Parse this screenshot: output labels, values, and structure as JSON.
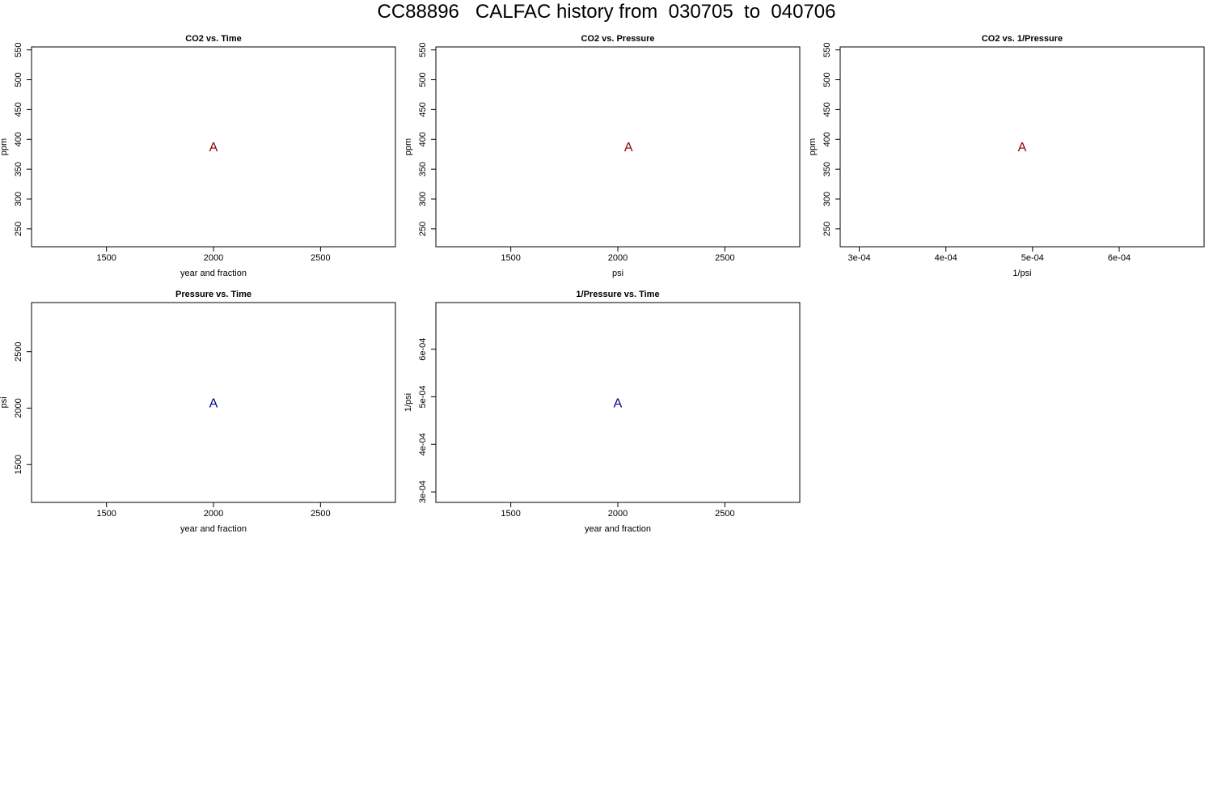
{
  "page_title": "CC88896   CALFAC history from  030705  to  040706",
  "chart_data": [
    {
      "type": "scatter",
      "title": "CO2 vs. Time",
      "xlabel": "year and fraction",
      "ylabel": "ppm",
      "xlim": [
        1150,
        2850
      ],
      "ylim": [
        220,
        555
      ],
      "xticks": [
        "1500",
        "2000",
        "2500"
      ],
      "xtick_values": [
        1500,
        2000,
        2500
      ],
      "yticks": [
        "250",
        "300",
        "350",
        "400",
        "450",
        "500",
        "550"
      ],
      "ytick_values": [
        250,
        300,
        350,
        400,
        450,
        500,
        550
      ],
      "series": [
        {
          "marker": "A",
          "color": "#8b0000",
          "points": [
            {
              "x": 2000,
              "y": 388
            }
          ]
        }
      ]
    },
    {
      "type": "scatter",
      "title": "CO2 vs. Pressure",
      "xlabel": "psi",
      "ylabel": "ppm",
      "xlim": [
        1150,
        2850
      ],
      "ylim": [
        220,
        555
      ],
      "xticks": [
        "1500",
        "2000",
        "2500"
      ],
      "xtick_values": [
        1500,
        2000,
        2500
      ],
      "yticks": [
        "250",
        "300",
        "350",
        "400",
        "450",
        "500",
        "550"
      ],
      "ytick_values": [
        250,
        300,
        350,
        400,
        450,
        500,
        550
      ],
      "series": [
        {
          "marker": "A",
          "color": "#8b0000",
          "points": [
            {
              "x": 2050,
              "y": 388
            }
          ]
        }
      ]
    },
    {
      "type": "scatter",
      "title": "CO2 vs. 1/Pressure",
      "xlabel": "1/psi",
      "ylabel": "ppm",
      "xlim": [
        0.000278,
        0.000698
      ],
      "ylim": [
        220,
        555
      ],
      "xticks": [
        "3e-04",
        "4e-04",
        "5e-04",
        "6e-04"
      ],
      "xtick_values": [
        0.0003,
        0.0004,
        0.0005,
        0.0006
      ],
      "yticks": [
        "250",
        "300",
        "350",
        "400",
        "450",
        "500",
        "550"
      ],
      "ytick_values": [
        250,
        300,
        350,
        400,
        450,
        500,
        550
      ],
      "series": [
        {
          "marker": "A",
          "color": "#8b0000",
          "points": [
            {
              "x": 0.000488,
              "y": 388
            }
          ]
        }
      ]
    },
    {
      "type": "scatter",
      "title": "Pressure vs. Time",
      "xlabel": "year and fraction",
      "ylabel": "psi",
      "xlim": [
        1150,
        2850
      ],
      "ylim": [
        1165,
        2935
      ],
      "xticks": [
        "1500",
        "2000",
        "2500"
      ],
      "xtick_values": [
        1500,
        2000,
        2500
      ],
      "yticks": [
        "1500",
        "2000",
        "2500"
      ],
      "ytick_values": [
        1500,
        2000,
        2500
      ],
      "series": [
        {
          "marker": "A",
          "color": "#00008b",
          "points": [
            {
              "x": 2000,
              "y": 2050
            }
          ]
        }
      ]
    },
    {
      "type": "scatter",
      "title": "1/Pressure vs. Time",
      "xlabel": "year and fraction",
      "ylabel": "1/psi",
      "xlim": [
        1150,
        2850
      ],
      "ylim": [
        0.000278,
        0.000698
      ],
      "xticks": [
        "1500",
        "2000",
        "2500"
      ],
      "xtick_values": [
        1500,
        2000,
        2500
      ],
      "yticks": [
        "3e-04",
        "4e-04",
        "5e-04",
        "6e-04"
      ],
      "ytick_values": [
        0.0003,
        0.0004,
        0.0005,
        0.0006
      ],
      "series": [
        {
          "marker": "A",
          "color": "#00008b",
          "points": [
            {
              "x": 2000,
              "y": 0.000488
            }
          ]
        }
      ]
    }
  ]
}
